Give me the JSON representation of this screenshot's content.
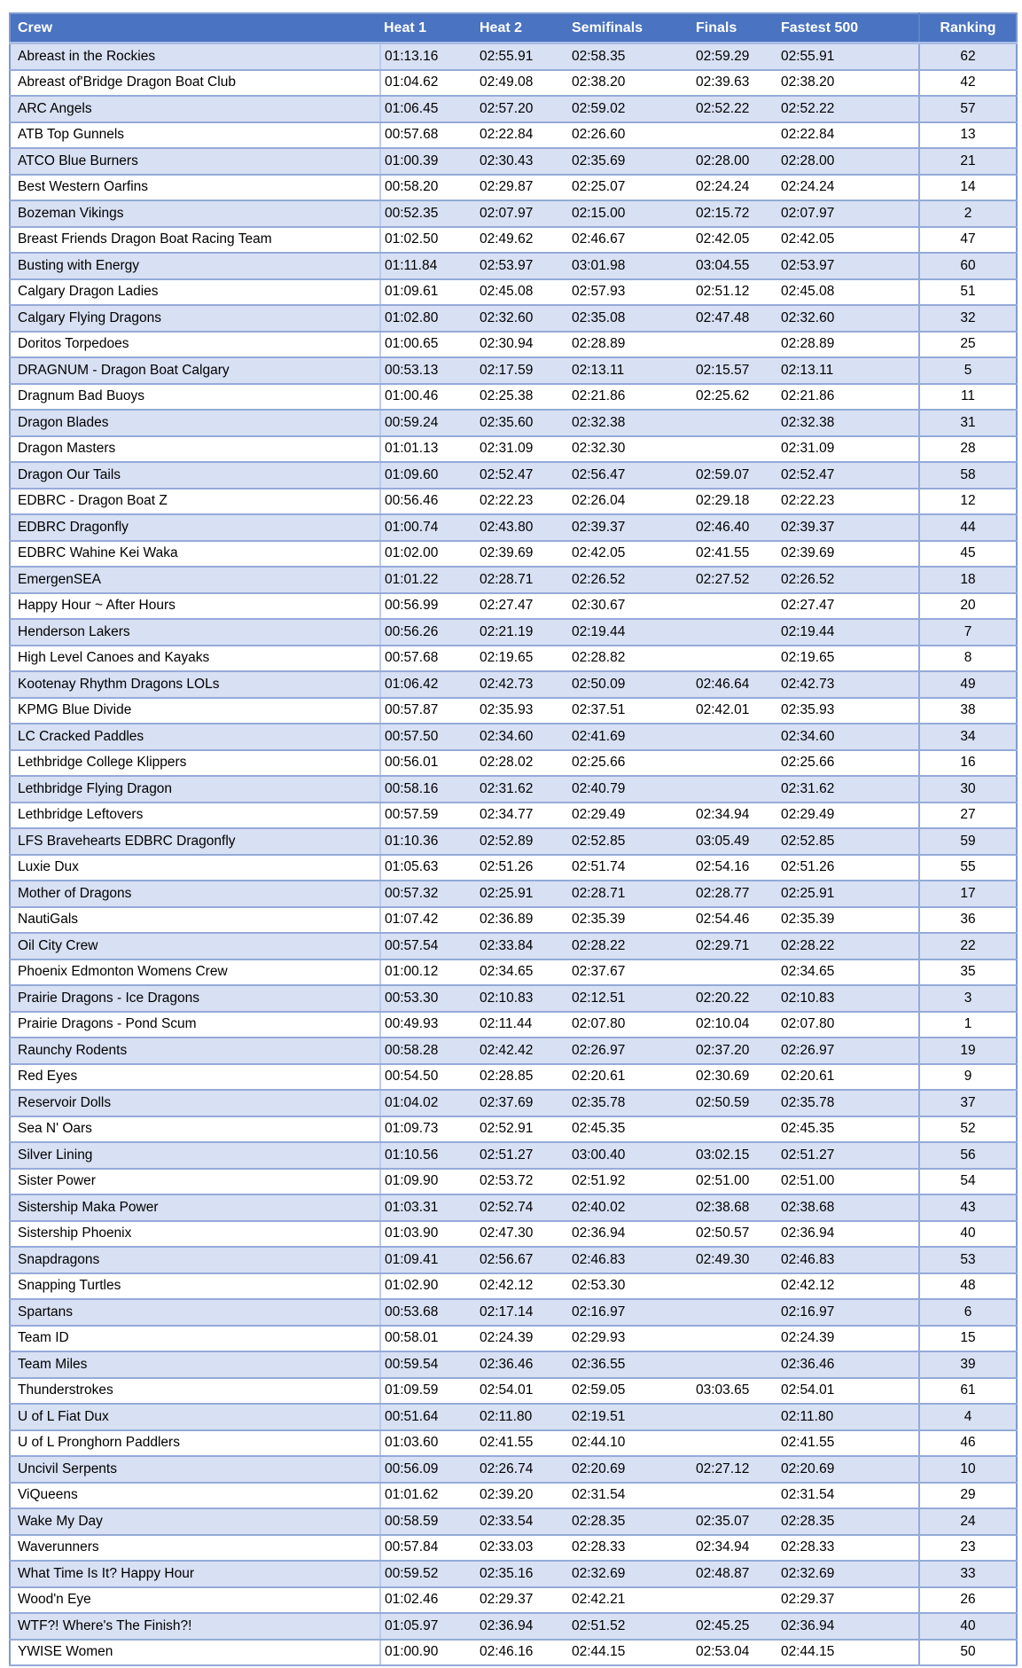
{
  "colors": {
    "header_bg": "#4A73C1",
    "header_text": "#FFFFFF",
    "row_alt_bg": "#D8E0F3",
    "row_bg": "#FFFFFF",
    "border": "#95AAD9",
    "outer_border": "#7F99CF",
    "text": "#000000"
  },
  "table": {
    "columns": [
      {
        "key": "crew",
        "label": "Crew"
      },
      {
        "key": "heat1",
        "label": "Heat 1"
      },
      {
        "key": "heat2",
        "label": "Heat 2"
      },
      {
        "key": "semifinals",
        "label": "Semifinals"
      },
      {
        "key": "finals",
        "label": "Finals"
      },
      {
        "key": "fastest500",
        "label": "Fastest 500"
      },
      {
        "key": "ranking",
        "label": "Ranking"
      }
    ],
    "rows": [
      {
        "crew": "Abreast in the Rockies",
        "heat1": "01:13.16",
        "heat2": "02:55.91",
        "semifinals": "02:58.35",
        "finals": "02:59.29",
        "fastest500": "02:55.91",
        "ranking": "62"
      },
      {
        "crew": "Abreast of'Bridge Dragon Boat Club",
        "heat1": "01:04.62",
        "heat2": "02:49.08",
        "semifinals": "02:38.20",
        "finals": "02:39.63",
        "fastest500": "02:38.20",
        "ranking": "42"
      },
      {
        "crew": "ARC Angels",
        "heat1": "01:06.45",
        "heat2": "02:57.20",
        "semifinals": "02:59.02",
        "finals": "02:52.22",
        "fastest500": "02:52.22",
        "ranking": "57"
      },
      {
        "crew": "ATB Top Gunnels",
        "heat1": "00:57.68",
        "heat2": "02:22.84",
        "semifinals": "02:26.60",
        "finals": "",
        "fastest500": "02:22.84",
        "ranking": "13"
      },
      {
        "crew": "ATCO Blue Burners",
        "heat1": "01:00.39",
        "heat2": "02:30.43",
        "semifinals": "02:35.69",
        "finals": "02:28.00",
        "fastest500": "02:28.00",
        "ranking": "21"
      },
      {
        "crew": "Best Western Oarfins",
        "heat1": "00:58.20",
        "heat2": "02:29.87",
        "semifinals": "02:25.07",
        "finals": "02:24.24",
        "fastest500": "02:24.24",
        "ranking": "14"
      },
      {
        "crew": "Bozeman Vikings",
        "heat1": "00:52.35",
        "heat2": "02:07.97",
        "semifinals": "02:15.00",
        "finals": "02:15.72",
        "fastest500": "02:07.97",
        "ranking": "2"
      },
      {
        "crew": "Breast Friends Dragon Boat Racing Team",
        "heat1": "01:02.50",
        "heat2": "02:49.62",
        "semifinals": "02:46.67",
        "finals": "02:42.05",
        "fastest500": "02:42.05",
        "ranking": "47"
      },
      {
        "crew": "Busting with Energy",
        "heat1": "01:11.84",
        "heat2": "02:53.97",
        "semifinals": "03:01.98",
        "finals": "03:04.55",
        "fastest500": "02:53.97",
        "ranking": "60"
      },
      {
        "crew": "Calgary Dragon Ladies",
        "heat1": "01:09.61",
        "heat2": "02:45.08",
        "semifinals": "02:57.93",
        "finals": "02:51.12",
        "fastest500": "02:45.08",
        "ranking": "51"
      },
      {
        "crew": "Calgary Flying Dragons",
        "heat1": "01:02.80",
        "heat2": "02:32.60",
        "semifinals": "02:35.08",
        "finals": "02:47.48",
        "fastest500": "02:32.60",
        "ranking": "32"
      },
      {
        "crew": "Doritos Torpedoes",
        "heat1": "01:00.65",
        "heat2": "02:30.94",
        "semifinals": "02:28.89",
        "finals": "",
        "fastest500": "02:28.89",
        "ranking": "25"
      },
      {
        "crew": "DRAGNUM - Dragon Boat Calgary",
        "heat1": "00:53.13",
        "heat2": "02:17.59",
        "semifinals": "02:13.11",
        "finals": "02:15.57",
        "fastest500": "02:13.11",
        "ranking": "5"
      },
      {
        "crew": "Dragnum Bad Buoys",
        "heat1": "01:00.46",
        "heat2": "02:25.38",
        "semifinals": "02:21.86",
        "finals": "02:25.62",
        "fastest500": "02:21.86",
        "ranking": "11"
      },
      {
        "crew": "Dragon Blades",
        "heat1": "00:59.24",
        "heat2": "02:35.60",
        "semifinals": "02:32.38",
        "finals": "",
        "fastest500": "02:32.38",
        "ranking": "31"
      },
      {
        "crew": "Dragon Masters",
        "heat1": "01:01.13",
        "heat2": "02:31.09",
        "semifinals": "02:32.30",
        "finals": "",
        "fastest500": "02:31.09",
        "ranking": "28"
      },
      {
        "crew": "Dragon Our Tails",
        "heat1": "01:09.60",
        "heat2": "02:52.47",
        "semifinals": "02:56.47",
        "finals": "02:59.07",
        "fastest500": "02:52.47",
        "ranking": "58"
      },
      {
        "crew": "EDBRC - Dragon Boat Z",
        "heat1": "00:56.46",
        "heat2": "02:22.23",
        "semifinals": "02:26.04",
        "finals": "02:29.18",
        "fastest500": "02:22.23",
        "ranking": "12"
      },
      {
        "crew": "EDBRC Dragonfly",
        "heat1": "01:00.74",
        "heat2": "02:43.80",
        "semifinals": "02:39.37",
        "finals": "02:46.40",
        "fastest500": "02:39.37",
        "ranking": "44"
      },
      {
        "crew": "EDBRC Wahine Kei Waka",
        "heat1": "01:02.00",
        "heat2": "02:39.69",
        "semifinals": "02:42.05",
        "finals": "02:41.55",
        "fastest500": "02:39.69",
        "ranking": "45"
      },
      {
        "crew": "EmergenSEA",
        "heat1": "01:01.22",
        "heat2": "02:28.71",
        "semifinals": "02:26.52",
        "finals": "02:27.52",
        "fastest500": "02:26.52",
        "ranking": "18"
      },
      {
        "crew": "Happy Hour ~ After Hours",
        "heat1": "00:56.99",
        "heat2": "02:27.47",
        "semifinals": "02:30.67",
        "finals": "",
        "fastest500": "02:27.47",
        "ranking": "20"
      },
      {
        "crew": "Henderson Lakers",
        "heat1": "00:56.26",
        "heat2": "02:21.19",
        "semifinals": "02:19.44",
        "finals": "",
        "fastest500": "02:19.44",
        "ranking": "7"
      },
      {
        "crew": "High Level Canoes and Kayaks",
        "heat1": "00:57.68",
        "heat2": "02:19.65",
        "semifinals": "02:28.82",
        "finals": "",
        "fastest500": "02:19.65",
        "ranking": "8"
      },
      {
        "crew": "Kootenay Rhythm Dragons LOLs",
        "heat1": "01:06.42",
        "heat2": "02:42.73",
        "semifinals": "02:50.09",
        "finals": "02:46.64",
        "fastest500": "02:42.73",
        "ranking": "49"
      },
      {
        "crew": "KPMG Blue Divide",
        "heat1": "00:57.87",
        "heat2": "02:35.93",
        "semifinals": "02:37.51",
        "finals": "02:42.01",
        "fastest500": "02:35.93",
        "ranking": "38"
      },
      {
        "crew": "LC Cracked Paddles",
        "heat1": "00:57.50",
        "heat2": "02:34.60",
        "semifinals": "02:41.69",
        "finals": "",
        "fastest500": "02:34.60",
        "ranking": "34"
      },
      {
        "crew": "Lethbridge College Klippers",
        "heat1": "00:56.01",
        "heat2": "02:28.02",
        "semifinals": "02:25.66",
        "finals": "",
        "fastest500": "02:25.66",
        "ranking": "16"
      },
      {
        "crew": "Lethbridge Flying Dragon",
        "heat1": "00:58.16",
        "heat2": "02:31.62",
        "semifinals": "02:40.79",
        "finals": "",
        "fastest500": "02:31.62",
        "ranking": "30"
      },
      {
        "crew": "Lethbridge Leftovers",
        "heat1": "00:57.59",
        "heat2": "02:34.77",
        "semifinals": "02:29.49",
        "finals": "02:34.94",
        "fastest500": "02:29.49",
        "ranking": "27"
      },
      {
        "crew": "LFS Bravehearts EDBRC Dragonfly",
        "heat1": "01:10.36",
        "heat2": "02:52.89",
        "semifinals": "02:52.85",
        "finals": "03:05.49",
        "fastest500": "02:52.85",
        "ranking": "59"
      },
      {
        "crew": "Luxie Dux",
        "heat1": "01:05.63",
        "heat2": "02:51.26",
        "semifinals": "02:51.74",
        "finals": "02:54.16",
        "fastest500": "02:51.26",
        "ranking": "55"
      },
      {
        "crew": "Mother of Dragons",
        "heat1": "00:57.32",
        "heat2": "02:25.91",
        "semifinals": "02:28.71",
        "finals": "02:28.77",
        "fastest500": "02:25.91",
        "ranking": "17"
      },
      {
        "crew": "NautiGals",
        "heat1": "01:07.42",
        "heat2": "02:36.89",
        "semifinals": "02:35.39",
        "finals": "02:54.46",
        "fastest500": "02:35.39",
        "ranking": "36"
      },
      {
        "crew": "Oil City Crew",
        "heat1": "00:57.54",
        "heat2": "02:33.84",
        "semifinals": "02:28.22",
        "finals": "02:29.71",
        "fastest500": "02:28.22",
        "ranking": "22"
      },
      {
        "crew": "Phoenix Edmonton Womens Crew",
        "heat1": "01:00.12",
        "heat2": "02:34.65",
        "semifinals": "02:37.67",
        "finals": "",
        "fastest500": "02:34.65",
        "ranking": "35"
      },
      {
        "crew": "Prairie Dragons - Ice Dragons",
        "heat1": "00:53.30",
        "heat2": "02:10.83",
        "semifinals": "02:12.51",
        "finals": "02:20.22",
        "fastest500": "02:10.83",
        "ranking": "3"
      },
      {
        "crew": "Prairie Dragons - Pond Scum",
        "heat1": "00:49.93",
        "heat2": "02:11.44",
        "semifinals": "02:07.80",
        "finals": "02:10.04",
        "fastest500": "02:07.80",
        "ranking": "1"
      },
      {
        "crew": "Raunchy Rodents",
        "heat1": "00:58.28",
        "heat2": "02:42.42",
        "semifinals": "02:26.97",
        "finals": "02:37.20",
        "fastest500": "02:26.97",
        "ranking": "19"
      },
      {
        "crew": "Red Eyes",
        "heat1": "00:54.50",
        "heat2": "02:28.85",
        "semifinals": "02:20.61",
        "finals": "02:30.69",
        "fastest500": "02:20.61",
        "ranking": "9"
      },
      {
        "crew": "Reservoir Dolls",
        "heat1": "01:04.02",
        "heat2": "02:37.69",
        "semifinals": "02:35.78",
        "finals": "02:50.59",
        "fastest500": "02:35.78",
        "ranking": "37"
      },
      {
        "crew": "Sea N' Oars",
        "heat1": "01:09.73",
        "heat2": "02:52.91",
        "semifinals": "02:45.35",
        "finals": "",
        "fastest500": "02:45.35",
        "ranking": "52"
      },
      {
        "crew": "Silver Lining",
        "heat1": "01:10.56",
        "heat2": "02:51.27",
        "semifinals": "03:00.40",
        "finals": "03:02.15",
        "fastest500": "02:51.27",
        "ranking": "56"
      },
      {
        "crew": "Sister Power",
        "heat1": "01:09.90",
        "heat2": "02:53.72",
        "semifinals": "02:51.92",
        "finals": "02:51.00",
        "fastest500": "02:51.00",
        "ranking": "54"
      },
      {
        "crew": "Sistership Maka Power",
        "heat1": "01:03.31",
        "heat2": "02:52.74",
        "semifinals": "02:40.02",
        "finals": "02:38.68",
        "fastest500": "02:38.68",
        "ranking": "43"
      },
      {
        "crew": "Sistership Phoenix",
        "heat1": "01:03.90",
        "heat2": "02:47.30",
        "semifinals": "02:36.94",
        "finals": "02:50.57",
        "fastest500": "02:36.94",
        "ranking": "40"
      },
      {
        "crew": "Snapdragons",
        "heat1": "01:09.41",
        "heat2": "02:56.67",
        "semifinals": "02:46.83",
        "finals": "02:49.30",
        "fastest500": "02:46.83",
        "ranking": "53"
      },
      {
        "crew": "Snapping Turtles",
        "heat1": "01:02.90",
        "heat2": "02:42.12",
        "semifinals": "02:53.30",
        "finals": "",
        "fastest500": "02:42.12",
        "ranking": "48"
      },
      {
        "crew": "Spartans",
        "heat1": "00:53.68",
        "heat2": "02:17.14",
        "semifinals": "02:16.97",
        "finals": "",
        "fastest500": "02:16.97",
        "ranking": "6"
      },
      {
        "crew": "Team ID",
        "heat1": "00:58.01",
        "heat2": "02:24.39",
        "semifinals": "02:29.93",
        "finals": "",
        "fastest500": "02:24.39",
        "ranking": "15"
      },
      {
        "crew": "Team Miles",
        "heat1": "00:59.54",
        "heat2": "02:36.46",
        "semifinals": "02:36.55",
        "finals": "",
        "fastest500": "02:36.46",
        "ranking": "39"
      },
      {
        "crew": "Thunderstrokes",
        "heat1": "01:09.59",
        "heat2": "02:54.01",
        "semifinals": "02:59.05",
        "finals": "03:03.65",
        "fastest500": "02:54.01",
        "ranking": "61"
      },
      {
        "crew": "U of L Fiat Dux",
        "heat1": "00:51.64",
        "heat2": "02:11.80",
        "semifinals": "02:19.51",
        "finals": "",
        "fastest500": "02:11.80",
        "ranking": "4"
      },
      {
        "crew": "U of L Pronghorn Paddlers",
        "heat1": "01:03.60",
        "heat2": "02:41.55",
        "semifinals": "02:44.10",
        "finals": "",
        "fastest500": "02:41.55",
        "ranking": "46"
      },
      {
        "crew": "Uncivil Serpents",
        "heat1": "00:56.09",
        "heat2": "02:26.74",
        "semifinals": "02:20.69",
        "finals": "02:27.12",
        "fastest500": "02:20.69",
        "ranking": "10"
      },
      {
        "crew": "ViQueens",
        "heat1": "01:01.62",
        "heat2": "02:39.20",
        "semifinals": "02:31.54",
        "finals": "",
        "fastest500": "02:31.54",
        "ranking": "29"
      },
      {
        "crew": "Wake My Day",
        "heat1": "00:58.59",
        "heat2": "02:33.54",
        "semifinals": "02:28.35",
        "finals": "02:35.07",
        "fastest500": "02:28.35",
        "ranking": "24"
      },
      {
        "crew": "Waverunners",
        "heat1": "00:57.84",
        "heat2": "02:33.03",
        "semifinals": "02:28.33",
        "finals": "02:34.94",
        "fastest500": "02:28.33",
        "ranking": "23"
      },
      {
        "crew": "What Time Is It? Happy Hour",
        "heat1": "00:59.52",
        "heat2": "02:35.16",
        "semifinals": "02:32.69",
        "finals": "02:48.87",
        "fastest500": "02:32.69",
        "ranking": "33"
      },
      {
        "crew": "Wood'n Eye",
        "heat1": "01:02.46",
        "heat2": "02:29.37",
        "semifinals": "02:42.21",
        "finals": "",
        "fastest500": "02:29.37",
        "ranking": "26"
      },
      {
        "crew": "WTF?! Where's The Finish?!",
        "heat1": "01:05.97",
        "heat2": "02:36.94",
        "semifinals": "02:51.52",
        "finals": "02:45.25",
        "fastest500": "02:36.94",
        "ranking": "40"
      },
      {
        "crew": "YWISE Women",
        "heat1": "01:00.90",
        "heat2": "02:46.16",
        "semifinals": "02:44.15",
        "finals": "02:53.04",
        "fastest500": "02:44.15",
        "ranking": "50"
      }
    ]
  }
}
